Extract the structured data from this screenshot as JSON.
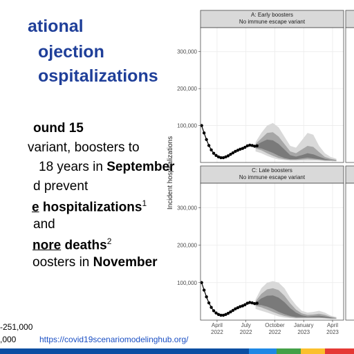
{
  "slide": {
    "title_lines": [
      "ational",
      "ojection",
      "ospitalizations"
    ],
    "body": [
      [
        "ound 15"
      ],
      [
        "variant, boosters to"
      ],
      [
        "18 years in ",
        "September"
      ],
      [
        "d prevent"
      ],
      [
        "e",
        " hospitalizations",
        "1"
      ],
      [
        "and"
      ],
      [
        "nore",
        " deaths",
        "2"
      ],
      [
        "oosters in ",
        "November"
      ]
    ],
    "footnotes": [
      "-251,000",
      ",000"
    ],
    "link": "https://covid19scenariomodelinghub.org/"
  },
  "chart_data": [
    {
      "type": "line",
      "title": "A: Early boosters",
      "subtitle": "No immune escape variant",
      "y_label": "Incident hospitalizations",
      "xlim": [
        1.28,
        16.15
      ],
      "ylim": [
        0,
        365000
      ],
      "yticks": [
        {
          "value": 100000,
          "label": "100,000"
        },
        {
          "value": 200000,
          "label": "200,000"
        },
        {
          "value": 300000,
          "label": "300,000"
        }
      ],
      "grid": true,
      "series": [
        {
          "color": "#d9d9d9",
          "x": [
            7.0,
            7.6,
            8.2,
            8.8,
            9.4,
            10.0,
            10.6,
            11.2,
            11.8,
            12.4,
            13.0,
            13.6,
            14.2,
            14.8,
            15.4
          ],
          "upper": [
            55000,
            80000,
            100000,
            107000,
            95000,
            70000,
            45000,
            40000,
            60000,
            80000,
            75000,
            45000,
            25000,
            15000,
            10000
          ],
          "lower": [
            30000,
            25000,
            18000,
            12000,
            8000,
            6000,
            5000,
            5000,
            5000,
            5000,
            5000,
            5000,
            4000,
            4000,
            3000
          ]
        },
        {
          "color": "#a6a6a6",
          "x": [
            7.0,
            7.6,
            8.2,
            8.8,
            9.4,
            10.0,
            10.6,
            11.2,
            11.8,
            12.4,
            13.0,
            13.6,
            14.2,
            14.8,
            15.4
          ],
          "upper": [
            50000,
            65000,
            80000,
            82000,
            70000,
            50000,
            30000,
            25000,
            35000,
            45000,
            42000,
            28000,
            15000,
            10000,
            7000
          ],
          "lower": [
            38000,
            33000,
            25000,
            18000,
            12000,
            9000,
            7000,
            7000,
            8000,
            9000,
            8000,
            7000,
            5000,
            5000,
            4000
          ]
        },
        {
          "color": "#7a7a7a",
          "x": [
            7.0,
            7.6,
            8.2,
            8.8,
            9.4,
            10.0,
            10.6,
            11.2,
            11.8,
            12.4,
            13.0,
            13.6,
            14.2,
            14.8,
            15.4
          ],
          "upper": [
            46000,
            55000,
            62000,
            60000,
            50000,
            35000,
            20000,
            16000,
            20000,
            25000,
            22000,
            16000,
            10000,
            7000,
            5000
          ],
          "lower": [
            40000,
            38000,
            32000,
            26000,
            18000,
            12000,
            9000,
            9000,
            11000,
            13000,
            11000,
            9000,
            7000,
            6000,
            5000
          ]
        },
        {
          "color": "#000000",
          "x": [
            1.4,
            1.65,
            1.9,
            2.15,
            2.4,
            2.65,
            2.9,
            3.15,
            3.4,
            3.65,
            3.9,
            4.15,
            4.4,
            4.65,
            4.9,
            5.15,
            5.4,
            5.65,
            5.9,
            6.15,
            6.4,
            6.65,
            6.9,
            7.15
          ],
          "values": [
            100000,
            80000,
            62000,
            46000,
            34000,
            25000,
            19000,
            15000,
            13000,
            13000,
            15000,
            18000,
            22000,
            26000,
            30000,
            33000,
            36000,
            38000,
            41000,
            45000,
            47000,
            46000,
            44000,
            45000
          ]
        }
      ]
    },
    {
      "type": "line",
      "title": "C: Late boosters",
      "subtitle": "No immune escape variant",
      "xlim": [
        1.28,
        16.15
      ],
      "ylim": [
        0,
        365000
      ],
      "xticks": [
        {
          "value": 3,
          "label": "April 2022"
        },
        {
          "value": 6,
          "label": "July 2022"
        },
        {
          "value": 9,
          "label": "October 2022"
        },
        {
          "value": 12,
          "label": "January 2023"
        },
        {
          "value": 15,
          "label": "April 2023"
        }
      ],
      "yticks": [
        {
          "value": 100000,
          "label": "100,000"
        },
        {
          "value": 200000,
          "label": "200,000"
        },
        {
          "value": 300000,
          "label": "300,000"
        }
      ],
      "grid": true,
      "series": [
        {
          "color": "#d9d9d9",
          "x": [
            7.0,
            7.6,
            8.2,
            8.8,
            9.4,
            10.0,
            10.6,
            11.2,
            11.8,
            12.4,
            13.0,
            13.6,
            14.2,
            14.8,
            15.4
          ],
          "upper": [
            55000,
            85000,
            100000,
            104000,
            100000,
            85000,
            60000,
            40000,
            25000,
            20000,
            22000,
            25000,
            20000,
            12000,
            8000
          ],
          "lower": [
            30000,
            25000,
            20000,
            15000,
            10000,
            7000,
            5000,
            4000,
            4000,
            4000,
            4000,
            4000,
            4000,
            3000,
            3000
          ]
        },
        {
          "color": "#a6a6a6",
          "x": [
            7.0,
            7.6,
            8.2,
            8.8,
            9.4,
            10.0,
            10.6,
            11.2,
            11.8,
            12.4,
            13.0,
            13.6,
            14.2,
            14.8,
            15.4
          ],
          "upper": [
            50000,
            70000,
            82000,
            85000,
            80000,
            65000,
            45000,
            28000,
            18000,
            14000,
            15000,
            17000,
            14000,
            9000,
            6000
          ],
          "lower": [
            38000,
            34000,
            28000,
            22000,
            16000,
            11000,
            8000,
            6000,
            6000,
            6000,
            6000,
            6000,
            5000,
            4000,
            4000
          ]
        },
        {
          "color": "#7a7a7a",
          "x": [
            7.0,
            7.6,
            8.2,
            8.8,
            9.4,
            10.0,
            10.6,
            11.2,
            11.8,
            12.4,
            13.0,
            13.6,
            14.2,
            14.8,
            15.4
          ],
          "upper": [
            46000,
            58000,
            65000,
            66000,
            60000,
            48000,
            32000,
            20000,
            13000,
            10000,
            11000,
            12000,
            10000,
            7000,
            5000
          ],
          "lower": [
            40000,
            40000,
            36000,
            30000,
            22000,
            16000,
            11000,
            8000,
            8000,
            8000,
            8000,
            8000,
            7000,
            5000,
            5000
          ]
        },
        {
          "color": "#000000",
          "x": [
            1.4,
            1.65,
            1.9,
            2.15,
            2.4,
            2.65,
            2.9,
            3.15,
            3.4,
            3.65,
            3.9,
            4.15,
            4.4,
            4.65,
            4.9,
            5.15,
            5.4,
            5.65,
            5.9,
            6.15,
            6.4,
            6.65,
            6.9,
            7.15
          ],
          "values": [
            100000,
            80000,
            62000,
            46000,
            34000,
            25000,
            19000,
            15000,
            13000,
            13000,
            15000,
            18000,
            22000,
            26000,
            30000,
            33000,
            36000,
            38000,
            41000,
            45000,
            47000,
            46000,
            44000,
            45000
          ]
        }
      ]
    }
  ]
}
